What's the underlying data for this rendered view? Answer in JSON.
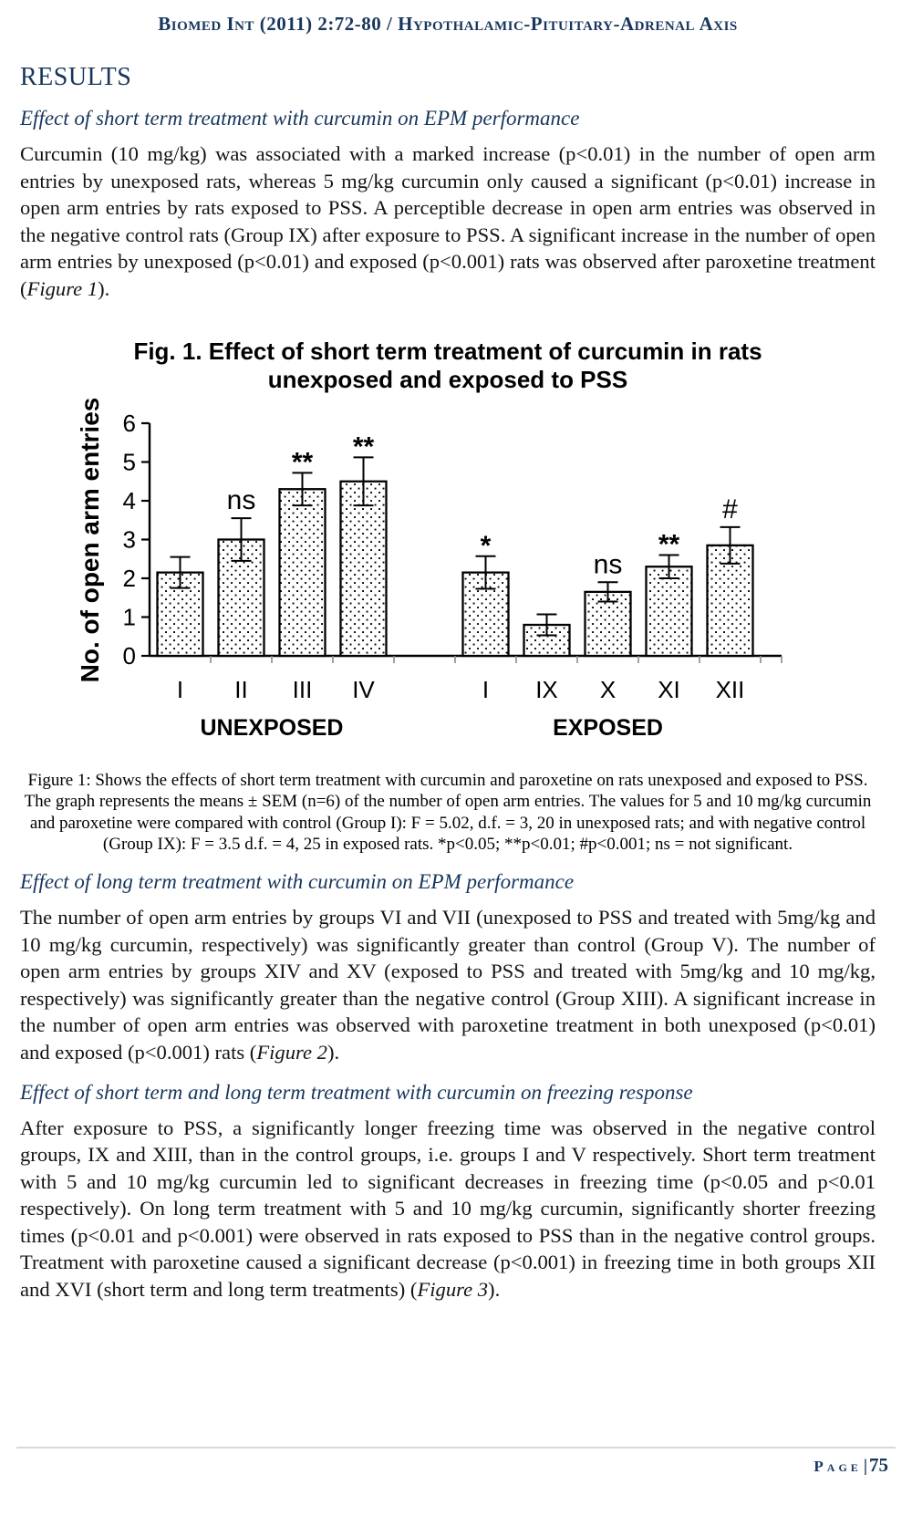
{
  "page": {
    "header": "Biomed Int (2011) 2:72-80 / Hypothalamic-Pituitary-Adrenal Axis",
    "footer": {
      "label": "Page",
      "separator": "|",
      "number": "75"
    }
  },
  "results": {
    "heading": "RESULTS",
    "subheading1": "Effect of short term treatment with curcumin on EPM performance",
    "paragraph1": {
      "text": "Curcumin (10 mg/kg) was associated with a marked increase (p<0.01) in the number of open arm entries by unexposed rats, whereas 5 mg/kg curcumin only caused a significant (p<0.01) increase in open arm entries by rats exposed to PSS. A perceptible decrease in open arm entries was observed in the negative control rats (Group IX) after exposure to PSS. A significant increase in the number of open arm entries by unexposed (p<0.01) and exposed (p<0.001) rats was observed after paroxetine treatment (",
      "figure_ref": "Figure 1",
      "tail": ")."
    },
    "subheading2": "Effect of long term treatment with curcumin on EPM performance",
    "paragraph2": {
      "text": "The number of open arm entries by groups VI and VII (unexposed to PSS and treated with 5mg/kg and 10 mg/kg curcumin, respectively) was significantly greater than control (Group V). The number of open arm entries by groups XIV and XV (exposed to PSS and treated with 5mg/kg and 10 mg/kg, respectively) was significantly greater than the negative control (Group XIII). A significant increase in the number of open arm entries was observed with paroxetine treatment in both unexposed (p<0.01) and exposed (p<0.001) rats (",
      "figure_ref": "Figure 2",
      "tail": ")."
    },
    "subheading3": "Effect of short term and long term treatment with curcumin on freezing response",
    "paragraph3": {
      "text": "After exposure to PSS, a significantly longer freezing time was observed in the negative control groups, IX and XIII, than in the control groups, i.e. groups I and V respectively. Short term treatment with 5 and 10 mg/kg curcumin led to significant decreases in freezing time (p<0.05 and p<0.01 respectively). On long term treatment with 5 and 10 mg/kg curcumin, significantly shorter freezing times (p<0.01 and p<0.001) were observed in rats exposed to PSS than in the negative control groups. Treatment with paroxetine caused a significant decrease (p<0.001) in freezing time in both groups XII and XVI (short term and long term treatments) (",
      "figure_ref": "Figure 3",
      "tail": ")."
    }
  },
  "figure1": {
    "title_line1": "Fig. 1. Effect of short term treatment of curcumin in rats",
    "title_line2": "unexposed and exposed to PSS",
    "caption": "Figure 1: Shows the effects of short term treatment with curcumin and paroxetine on rats unexposed and exposed to PSS. The graph represents the means ± SEM (n=6) of the number of open arm entries. The values for 5 and 10 mg/kg curcumin and paroxetine were compared with control (Group I): F = 5.02, d.f. = 3, 20 in unexposed rats; and with negative control (Group IX): F = 3.5 d.f. = 4, 25 in exposed rats. *p<0.05; **p<0.01; #p<0.001; ns = not significant."
  },
  "chart_data": {
    "type": "bar",
    "title": "Fig. 1. Effect of short term treatment of curcumin in rats unexposed and exposed to PSS",
    "xlabel": "",
    "ylabel": "No. of open arm entries",
    "ylim": [
      0,
      6
    ],
    "yticks": [
      0,
      1,
      2,
      3,
      4,
      5,
      6
    ],
    "categories": [
      "I",
      "II",
      "III",
      "IV",
      "I",
      "IX",
      "X",
      "XI",
      "XII"
    ],
    "values": [
      2.15,
      3.0,
      4.3,
      4.5,
      2.15,
      0.8,
      1.65,
      2.3,
      2.85
    ],
    "errors": [
      0.4,
      0.55,
      0.42,
      0.62,
      0.42,
      0.27,
      0.25,
      0.3,
      0.47
    ],
    "annotations": [
      "",
      "ns",
      "**",
      "**",
      "*",
      "",
      "ns",
      "**",
      "#"
    ],
    "groups": [
      {
        "label": "UNEXPOSED",
        "bars": [
          0,
          1,
          2,
          3
        ]
      },
      {
        "label": "EXPOSED",
        "bars": [
          4,
          5,
          6,
          7,
          8
        ]
      }
    ],
    "bar_fill": "black-stipple-dots-on-white",
    "bar_edge_color": "#000000",
    "error_bars": "plus-minus-SEM",
    "grid": false,
    "legend": false
  }
}
